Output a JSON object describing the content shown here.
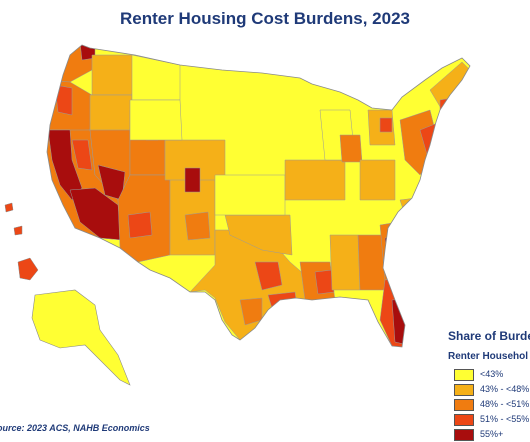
{
  "title": "Renter Housing Cost Burdens, 2023",
  "legend": {
    "title": "Share of Burden",
    "subtitle": "Renter Househol",
    "items": [
      {
        "label": "<43%",
        "color": "#ffff33"
      },
      {
        "label": "43% - <48%",
        "color": "#f5b018"
      },
      {
        "label": "48% - <51%",
        "color": "#f07c10"
      },
      {
        "label": "51% - <55%",
        "color": "#ec4716"
      },
      {
        "label": "55%+",
        "color": "#a80d0d"
      }
    ]
  },
  "source": "ource: 2023 ACS, NAHB Economics",
  "colors": {
    "title": "#1f3a78",
    "boundary": "#8a8a8a"
  }
}
